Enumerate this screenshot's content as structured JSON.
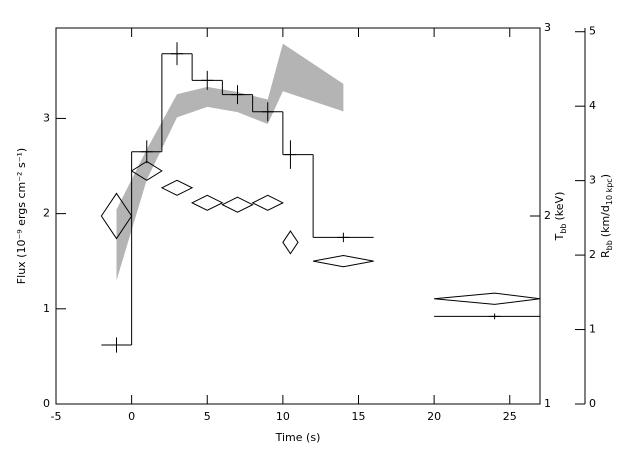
{
  "chart_data": {
    "type": "step",
    "xlabel": "Time (s)",
    "ylabel": "Flux (10⁻⁹ ergs cm⁻² s⁻¹)",
    "y2label": {
      "symbol": "T",
      "sub": "bb",
      "unit": "(keV)"
    },
    "y3label": {
      "symbol": "R",
      "sub": "bb",
      "unit": "(km/d",
      "unit_sub": "10 kpc",
      "close": ")"
    },
    "xlim": [
      -5,
      27
    ],
    "xticks": [
      -5,
      0,
      5,
      10,
      15,
      20,
      25
    ],
    "ylim": [
      0,
      3.95
    ],
    "yticks": [
      0,
      1,
      2,
      3
    ],
    "y2lim": [
      1,
      3
    ],
    "y2ticks": [
      1,
      2,
      3
    ],
    "y3lim": [
      0,
      5.05
    ],
    "y3ticks": [
      0,
      1,
      2,
      3,
      4,
      5
    ],
    "flux": {
      "x": [
        -1,
        1,
        3,
        5,
        7,
        9,
        10.5,
        14,
        24
      ],
      "x_low": [
        -2,
        0,
        2,
        4,
        6,
        8,
        10,
        12,
        20
      ],
      "x_high": [
        0,
        2,
        4,
        6,
        8,
        10,
        12,
        16,
        27
      ],
      "values": [
        0.62,
        2.65,
        3.68,
        3.4,
        3.25,
        3.07,
        2.62,
        1.75,
        0.92
      ],
      "errors": [
        0.08,
        0.12,
        0.12,
        0.1,
        0.1,
        0.1,
        0.15,
        0.05,
        0.03
      ],
      "color": "#000000"
    },
    "radius": {
      "x": [
        -1,
        1,
        3,
        5,
        7,
        9,
        10,
        14
      ],
      "upper": [
        2.61,
        3.42,
        4.16,
        4.26,
        4.19,
        4.09,
        4.84,
        4.3
      ],
      "lower": [
        1.66,
        3.01,
        3.85,
        3.99,
        3.92,
        3.76,
        4.2,
        3.93
      ],
      "color": "#b4b4b4"
    },
    "temperature": {
      "x": [
        -1,
        1,
        3,
        5,
        7,
        9,
        10.5,
        14,
        24
      ],
      "x_low": [
        -2,
        0,
        2,
        4,
        6,
        8,
        10,
        12,
        20
      ],
      "x_high": [
        0,
        2,
        4,
        6,
        8,
        10,
        11,
        16,
        27
      ],
      "values": [
        2.0,
        2.24,
        2.15,
        2.07,
        2.06,
        2.07,
        1.86,
        1.76,
        1.56
      ],
      "errors": [
        0.12,
        0.05,
        0.04,
        0.04,
        0.04,
        0.04,
        0.06,
        0.03,
        0.03
      ],
      "color": "#000000"
    }
  }
}
